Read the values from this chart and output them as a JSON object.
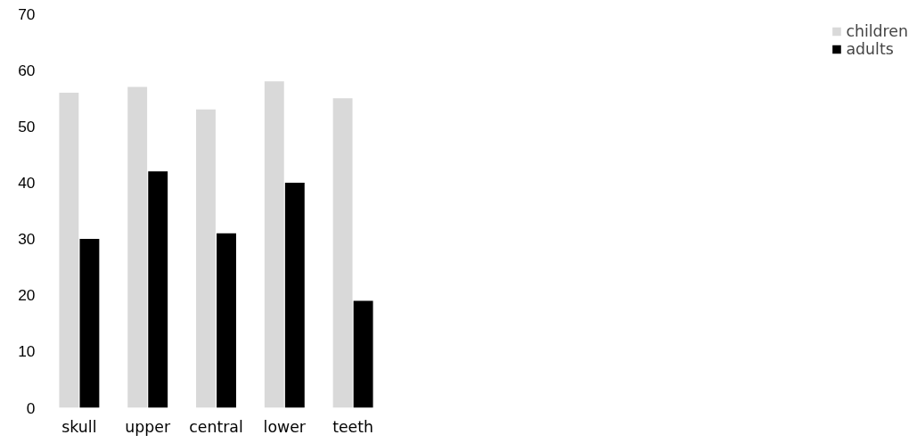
{
  "chart_data": {
    "type": "bar",
    "categories": [
      "skull",
      "upper",
      "central",
      "lower",
      "teeth"
    ],
    "series": [
      {
        "name": "children",
        "color": "#d9d9d9",
        "values": [
          56,
          57,
          53,
          58,
          55
        ]
      },
      {
        "name": "adults",
        "color": "#000000",
        "values": [
          30,
          42,
          31,
          40,
          19
        ]
      }
    ],
    "ylim": [
      0,
      70
    ],
    "yticks": [
      0,
      10,
      20,
      30,
      40,
      50,
      60,
      70
    ],
    "grid": false,
    "legend": "right"
  }
}
